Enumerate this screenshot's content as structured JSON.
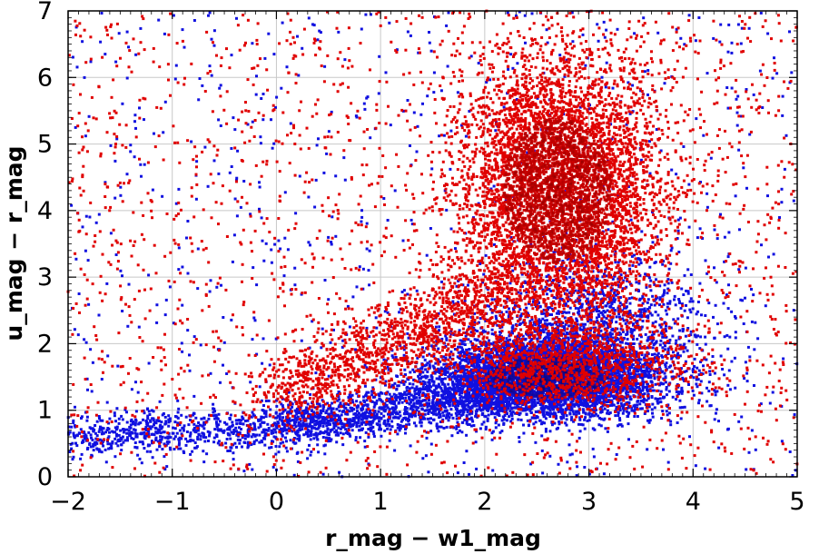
{
  "chart_data": {
    "type": "scatter",
    "title": "",
    "xlabel": "r_mag − w1_mag",
    "ylabel": "u_mag − r_mag",
    "xlim": [
      -2,
      5
    ],
    "ylim": [
      0,
      7
    ],
    "x_ticks": [
      -2,
      -1,
      0,
      1,
      2,
      3,
      4,
      5
    ],
    "x_tick_labels": [
      "−2",
      "−1",
      "0",
      "1",
      "2",
      "3",
      "4",
      "5"
    ],
    "y_ticks": [
      0,
      1,
      2,
      3,
      4,
      5,
      6,
      7
    ],
    "y_tick_labels": [
      "0",
      "1",
      "2",
      "3",
      "4",
      "5",
      "6",
      "7"
    ],
    "grid": true,
    "colors": {
      "blue": "#1010e0",
      "red": "#e00000",
      "dense_core": "#200000"
    },
    "series": [
      {
        "color": "blue",
        "marker": "square",
        "components": [
          {
            "kind": "cluster",
            "center": [
              2.6,
              1.5
            ],
            "spread": [
              0.55,
              0.3
            ],
            "share": 0.55
          },
          {
            "kind": "tail",
            "from": [
              0.0,
              0.75
            ],
            "to": [
              2.2,
              1.25
            ],
            "width": 0.18,
            "share": 0.15
          },
          {
            "kind": "tail",
            "from": [
              -2.0,
              0.6
            ],
            "to": [
              0.0,
              0.75
            ],
            "width": 0.16,
            "share": 0.07
          },
          {
            "kind": "cluster",
            "center": [
              3.0,
              2.3
            ],
            "spread": [
              0.6,
              0.55
            ],
            "share": 0.13
          },
          {
            "kind": "halo",
            "share": 0.1
          }
        ],
        "points_drawn": 9000
      },
      {
        "color": "red",
        "marker": "square",
        "components": [
          {
            "kind": "cluster",
            "center": [
              2.7,
              4.3
            ],
            "spread": [
              0.48,
              1.0
            ],
            "share": 0.58
          },
          {
            "kind": "cluster",
            "center": [
              2.8,
              1.7
            ],
            "spread": [
              0.6,
              0.35
            ],
            "share": 0.12
          },
          {
            "kind": "tail",
            "from": [
              0.0,
              1.2
            ],
            "to": [
              2.2,
              2.8
            ],
            "width": 0.3,
            "share": 0.12
          },
          {
            "kind": "halo",
            "share": 0.18
          }
        ],
        "points_drawn": 10000
      }
    ]
  }
}
